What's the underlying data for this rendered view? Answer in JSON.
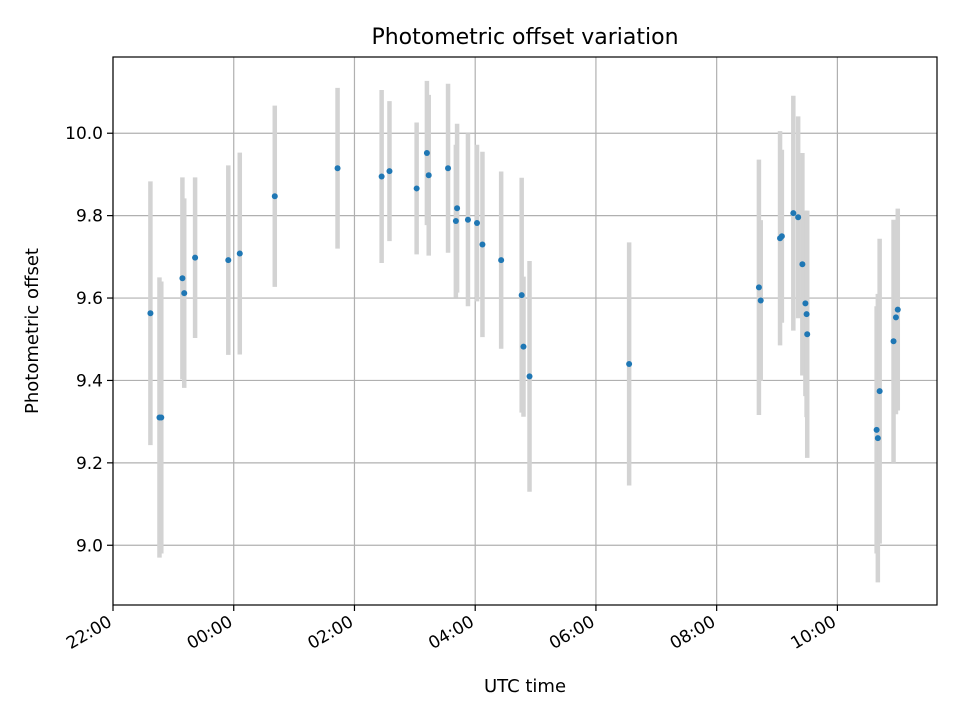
{
  "chart_data": {
    "type": "scatter",
    "title": "Photometric offset variation",
    "xlabel": "UTC time",
    "ylabel": "Photometric offset",
    "x_unit": "hours relative to 00:00 UTC",
    "xlim": [
      -2.0,
      11.65
    ],
    "ylim": [
      8.855,
      10.185
    ],
    "x_ticks": [
      {
        "value": -2,
        "label": "22:00"
      },
      {
        "value": 0,
        "label": "00:00"
      },
      {
        "value": 2,
        "label": "02:00"
      },
      {
        "value": 4,
        "label": "04:00"
      },
      {
        "value": 6,
        "label": "06:00"
      },
      {
        "value": 8,
        "label": "08:00"
      },
      {
        "value": 10,
        "label": "10:00"
      }
    ],
    "y_ticks": [
      {
        "value": 9.0,
        "label": "9.0"
      },
      {
        "value": 9.2,
        "label": "9.2"
      },
      {
        "value": 9.4,
        "label": "9.4"
      },
      {
        "value": 9.6,
        "label": "9.6"
      },
      {
        "value": 9.8,
        "label": "9.8"
      },
      {
        "value": 10.0,
        "label": "10.0"
      }
    ],
    "grid": true,
    "marker_color": "#1f77b4",
    "errorbar_color": "#d3d3d3",
    "points": [
      {
        "x": -1.38,
        "y": 9.563,
        "err": 0.32
      },
      {
        "x": -1.23,
        "y": 9.31,
        "err": 0.34
      },
      {
        "x": -1.2,
        "y": 9.31,
        "err": 0.33
      },
      {
        "x": -0.85,
        "y": 9.648,
        "err": 0.245
      },
      {
        "x": -0.82,
        "y": 9.612,
        "err": 0.23
      },
      {
        "x": -0.64,
        "y": 9.698,
        "err": 0.195
      },
      {
        "x": -0.09,
        "y": 9.692,
        "err": 0.23
      },
      {
        "x": 0.1,
        "y": 9.708,
        "err": 0.245
      },
      {
        "x": 0.68,
        "y": 9.847,
        "err": 0.22
      },
      {
        "x": 1.72,
        "y": 9.915,
        "err": 0.195
      },
      {
        "x": 2.45,
        "y": 9.895,
        "err": 0.21
      },
      {
        "x": 2.58,
        "y": 9.908,
        "err": 0.17
      },
      {
        "x": 3.03,
        "y": 9.866,
        "err": 0.16
      },
      {
        "x": 3.2,
        "y": 9.952,
        "err": 0.175
      },
      {
        "x": 3.23,
        "y": 9.898,
        "err": 0.195
      },
      {
        "x": 3.55,
        "y": 9.915,
        "err": 0.205
      },
      {
        "x": 3.68,
        "y": 9.787,
        "err": 0.185
      },
      {
        "x": 3.7,
        "y": 9.818,
        "err": 0.205
      },
      {
        "x": 3.88,
        "y": 9.79,
        "err": 0.21
      },
      {
        "x": 4.03,
        "y": 9.782,
        "err": 0.19
      },
      {
        "x": 4.12,
        "y": 9.73,
        "err": 0.225
      },
      {
        "x": 4.43,
        "y": 9.692,
        "err": 0.215
      },
      {
        "x": 4.77,
        "y": 9.607,
        "err": 0.285
      },
      {
        "x": 4.8,
        "y": 9.482,
        "err": 0.17
      },
      {
        "x": 4.9,
        "y": 9.41,
        "err": 0.28
      },
      {
        "x": 6.55,
        "y": 9.44,
        "err": 0.295
      },
      {
        "x": 8.7,
        "y": 9.626,
        "err": 0.31
      },
      {
        "x": 8.73,
        "y": 9.594,
        "err": 0.195
      },
      {
        "x": 9.05,
        "y": 9.745,
        "err": 0.26
      },
      {
        "x": 9.08,
        "y": 9.75,
        "err": 0.21
      },
      {
        "x": 9.27,
        "y": 9.806,
        "err": 0.285
      },
      {
        "x": 9.35,
        "y": 9.796,
        "err": 0.245
      },
      {
        "x": 9.42,
        "y": 9.682,
        "err": 0.27
      },
      {
        "x": 9.47,
        "y": 9.587,
        "err": 0.225
      },
      {
        "x": 9.49,
        "y": 9.561,
        "err": 0.25
      },
      {
        "x": 9.5,
        "y": 9.512,
        "err": 0.3
      },
      {
        "x": 10.65,
        "y": 9.28,
        "err": 0.3
      },
      {
        "x": 10.67,
        "y": 9.26,
        "err": 0.35
      },
      {
        "x": 10.7,
        "y": 9.374,
        "err": 0.37
      },
      {
        "x": 10.93,
        "y": 9.495,
        "err": 0.295
      },
      {
        "x": 10.97,
        "y": 9.553,
        "err": 0.235
      },
      {
        "x": 11.0,
        "y": 9.572,
        "err": 0.245
      }
    ]
  }
}
